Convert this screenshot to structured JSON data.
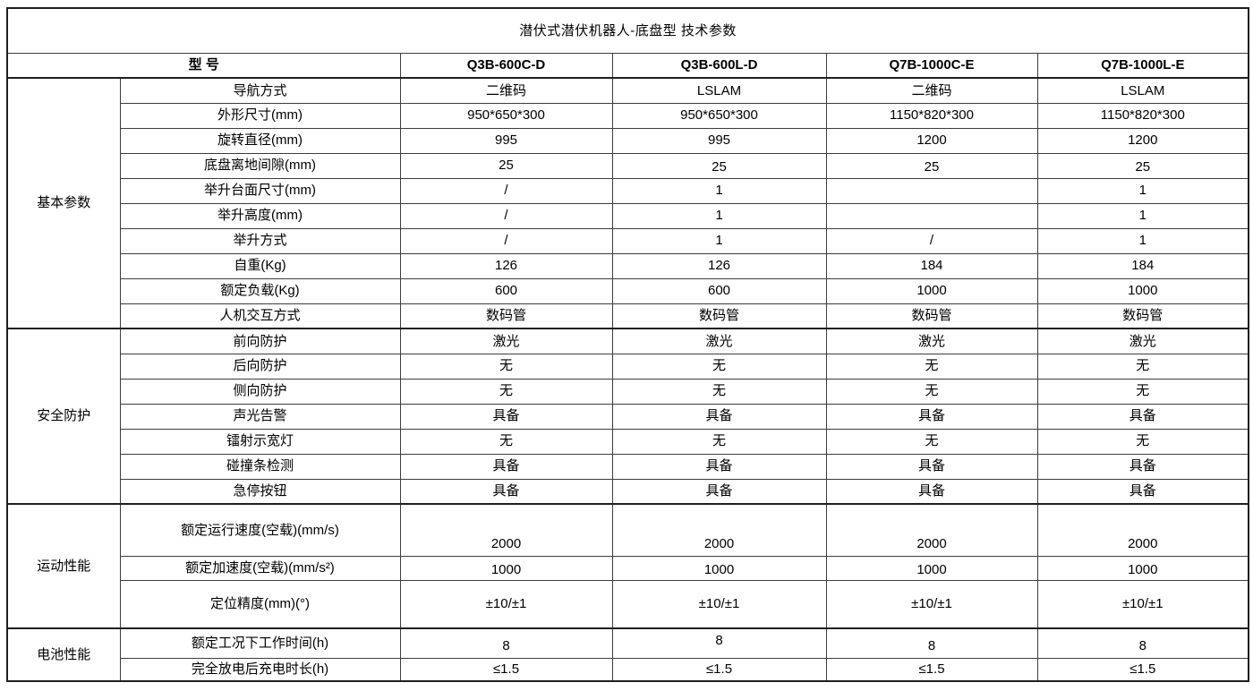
{
  "title": "潜伏式潜伏机器人-底盘型 技术参数",
  "header": {
    "model_label": "型 号",
    "models": [
      "Q3B-600C-D",
      "Q3B-600L-D",
      "Q7B-1000C-E",
      "Q7B-1000L-E"
    ]
  },
  "sections": [
    {
      "id": "basic",
      "name": "基本参数",
      "rows": [
        {
          "param": "导航方式",
          "values": [
            "二维码",
            "LSLAM",
            "二维码",
            "LSLAM"
          ]
        },
        {
          "param": "外形尺寸(mm)",
          "values": [
            "950*650*300",
            "950*650*300",
            "1150*820*300",
            "1150*820*300"
          ]
        },
        {
          "param": "旋转直径(mm)",
          "values": [
            "995",
            "995",
            "1200",
            "1200"
          ]
        },
        {
          "param": "底盘离地间隙(mm)",
          "values": [
            "25",
            "25",
            "25",
            "25"
          ]
        },
        {
          "param": "举升台面尺寸(mm)",
          "values": [
            "/",
            "1",
            "",
            "1"
          ]
        },
        {
          "param": "举升高度(mm)",
          "values": [
            "/",
            "1",
            "",
            "1"
          ]
        },
        {
          "param": "举升方式",
          "values": [
            "/",
            "1",
            "/",
            "1"
          ]
        },
        {
          "param": "自重(Kg)",
          "values": [
            "126",
            "126",
            "184",
            "184"
          ]
        },
        {
          "param": "额定负载(Kg)",
          "values": [
            "600",
            "600",
            "1000",
            "1000"
          ]
        },
        {
          "param": "人机交互方式",
          "values": [
            "数码管",
            "数码管",
            "数码管",
            "数码管"
          ]
        }
      ]
    },
    {
      "id": "safety",
      "name": "安全防护",
      "rows": [
        {
          "param": "前向防护",
          "values": [
            "激光",
            "激光",
            "激光",
            "激光"
          ]
        },
        {
          "param": "后向防护",
          "values": [
            "无",
            "无",
            "无",
            "无"
          ]
        },
        {
          "param": "侧向防护",
          "values": [
            "无",
            "无",
            "无",
            "无"
          ]
        },
        {
          "param": "声光告警",
          "values": [
            "具备",
            "具备",
            "具备",
            "具备"
          ]
        },
        {
          "param": "镭射示宽灯",
          "values": [
            "无",
            "无",
            "无",
            "无"
          ]
        },
        {
          "param": "碰撞条检测",
          "values": [
            "具备",
            "具备",
            "具备",
            "具备"
          ]
        },
        {
          "param": "急停按钮",
          "values": [
            "具备",
            "具备",
            "具备",
            "具备"
          ]
        }
      ]
    },
    {
      "id": "motion",
      "name": "运动性能",
      "rows": [
        {
          "param": "额定运行速度(空载)(mm/s)",
          "values": [
            "2000",
            "2000",
            "2000",
            "2000"
          ]
        },
        {
          "param": "额定加速度(空载)(mm/s²)",
          "values": [
            "1000",
            "1000",
            "1000",
            "1000"
          ]
        },
        {
          "param": "定位精度(mm)(°)",
          "values": [
            "±10/±1",
            "±10/±1",
            "±10/±1",
            "±10/±1"
          ]
        }
      ]
    },
    {
      "id": "battery",
      "name": "电池性能",
      "rows": [
        {
          "param": "额定工况下工作时间(h)",
          "values": [
            "8",
            "8",
            "8",
            "8"
          ]
        },
        {
          "param": "完全放电后充电时长(h)",
          "values": [
            "≤1.5",
            "≤1.5",
            "≤1.5",
            "≤1.5"
          ]
        }
      ]
    }
  ],
  "layout_columns": [
    126,
    313,
    237,
    239,
    236,
    236
  ],
  "colors": {
    "background": "#ffffff",
    "text": "#000000",
    "border_inner": "#3d3d3d",
    "border_outer": "#1f1f1f"
  }
}
